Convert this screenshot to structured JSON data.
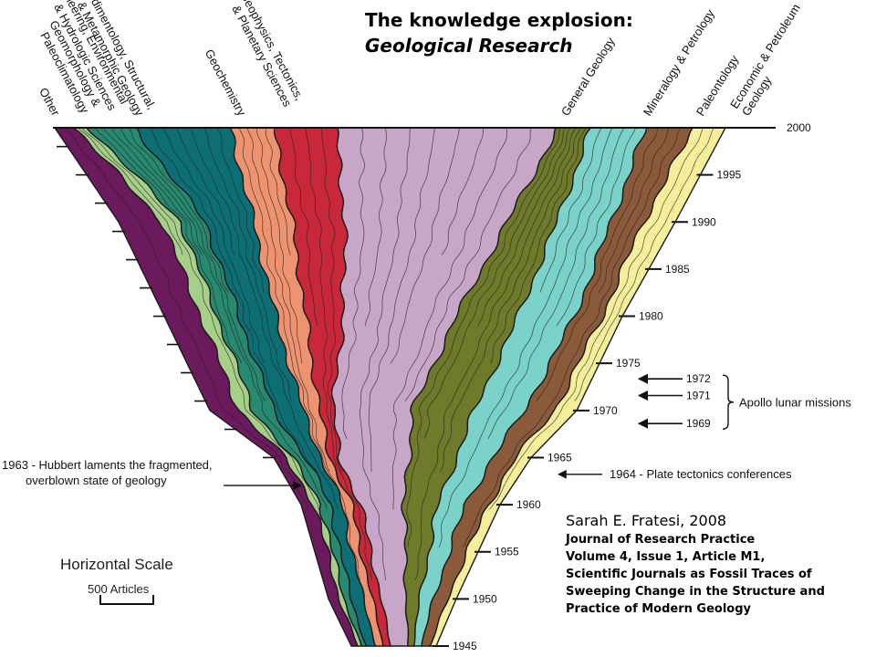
{
  "title_plain": "The knowledge explosion: ",
  "title_italic": "Geological Research",
  "citation": {
    "author": "Sarah E. Fratesi, 2008",
    "lines": [
      "Journal of Research Practice",
      "Volume 4, Issue 1, Article M1,",
      "Scientific Journals as Fossil Traces of",
      "Sweeping Change in the Structure and",
      "Practice of Modern Geology"
    ]
  },
  "chart_data": {
    "type": "area",
    "y_axis": {
      "min": 1945,
      "max": 2000,
      "ticks": [
        1945,
        1950,
        1955,
        1960,
        1965,
        1970,
        1975,
        1980,
        1985,
        1990,
        1995,
        2000
      ]
    },
    "categories": [
      {
        "label_lines": [
          "Other"
        ],
        "color": "#6b1a5e"
      },
      {
        "label_lines": [
          "Geomorphology &",
          "Paleoclimatology"
        ],
        "color": "#a6cf8a"
      },
      {
        "label_lines": [
          "Engineering, Environmental",
          "& Hydrologic Sciences"
        ],
        "color": "#27896f"
      },
      {
        "label_lines": [
          "Sedimentology, Structural,",
          "& Metamorphic Geology"
        ],
        "color": "#0d6f76"
      },
      {
        "label_lines": [
          "Geochemistry"
        ],
        "color": "#ee9370"
      },
      {
        "label_lines": [
          "Geophysics, Tectonics,",
          "& Planetary Sciences"
        ],
        "color": "#c9283a"
      },
      {
        "label_lines": [
          "General Geology"
        ],
        "color": "#c8a6c8"
      },
      {
        "label_lines": [
          "Mineralogy & Petrology"
        ],
        "color": "#6f7a2a"
      },
      {
        "label_lines": [
          "Paleontology"
        ],
        "color": "#7bd2c8"
      },
      {
        "label_lines": [
          "Economic & Petroleum",
          "Geology"
        ],
        "color": "#8a5a3b"
      },
      {
        "label_lines": [],
        "color": "#f5ee9a"
      }
    ],
    "annotations": [
      {
        "year": 1963,
        "side": "left",
        "lines": [
          "1963 - Hubbert laments the fragmented,",
          "overblown state of geology"
        ]
      },
      {
        "year": 1964,
        "side": "right",
        "lines": [
          "1964 - Plate tectonics conferences"
        ]
      }
    ],
    "apollo": {
      "years": [
        1972,
        1971,
        1969
      ],
      "label": "Apollo lunar missions"
    },
    "scale": {
      "title": "Horizontal Scale",
      "unit": "500 Articles"
    }
  }
}
